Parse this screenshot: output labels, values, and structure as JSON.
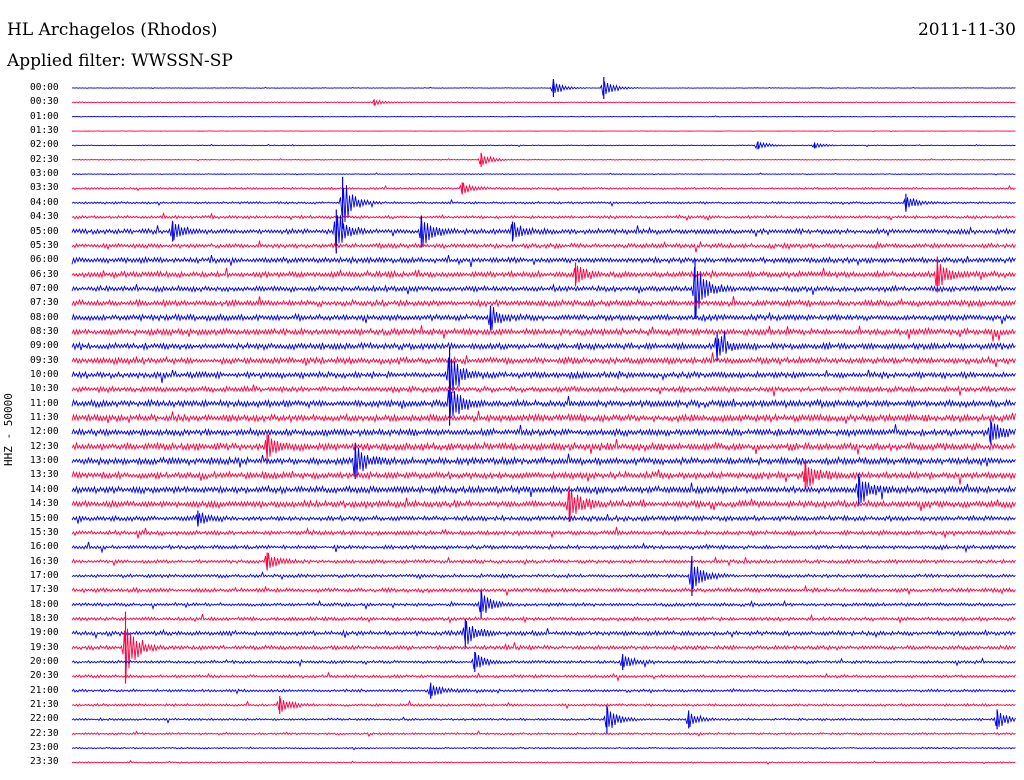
{
  "header": {
    "station": "HL Archagelos (Rhodos)",
    "date": "2011-11-30",
    "filter_label": "Applied filter: WWSSN-SP",
    "channel_label": "HHZ - 50000"
  },
  "colors": {
    "even_trace": "#0000e6",
    "odd_trace": "#ff0040"
  },
  "chart_data": {
    "type": "line",
    "title": "HL Archagelos (Rhodos)",
    "date": "2011-11-30",
    "filter": "WWSSN-SP",
    "ylabel": "HHZ - 50000",
    "row_interval_minutes": 30,
    "row_labels": [
      "00:00",
      "00:30",
      "01:00",
      "01:30",
      "02:00",
      "02:30",
      "03:00",
      "03:30",
      "04:00",
      "04:30",
      "05:00",
      "05:30",
      "06:00",
      "06:30",
      "07:00",
      "07:30",
      "08:00",
      "08:30",
      "09:00",
      "09:30",
      "10:00",
      "10:30",
      "11:00",
      "11:30",
      "12:00",
      "12:30",
      "13:00",
      "13:30",
      "14:00",
      "14:30",
      "15:00",
      "15:30",
      "16:00",
      "16:30",
      "17:00",
      "17:30",
      "18:00",
      "18:30",
      "19:00",
      "19:30",
      "20:00",
      "20:30",
      "21:00",
      "21:30",
      "22:00",
      "22:30",
      "23:00",
      "23:30"
    ],
    "noise_level": [
      0.3,
      0.4,
      0.3,
      0.2,
      0.4,
      0.4,
      0.4,
      0.9,
      1.0,
      1.3,
      2.2,
      2.0,
      2.4,
      2.6,
      2.4,
      2.6,
      2.6,
      2.8,
      2.8,
      2.8,
      2.6,
      2.4,
      3.0,
      3.0,
      3.0,
      3.2,
      3.0,
      2.9,
      3.0,
      3.0,
      2.2,
      2.0,
      1.7,
      1.6,
      1.5,
      1.8,
      1.5,
      1.6,
      2.0,
      1.8,
      1.3,
      1.3,
      1.2,
      1.1,
      1.0,
      0.9,
      0.7,
      0.6
    ],
    "events": [
      {
        "row": "00:00",
        "minute": 15.3,
        "amplitude": 9
      },
      {
        "row": "00:00",
        "minute": 16.9,
        "amplitude": 11
      },
      {
        "row": "00:30",
        "minute": 9.6,
        "amplitude": 3
      },
      {
        "row": "02:00",
        "minute": 21.8,
        "amplitude": 4
      },
      {
        "row": "02:00",
        "minute": 23.6,
        "amplitude": 3
      },
      {
        "row": "02:30",
        "minute": 13.0,
        "amplitude": 7
      },
      {
        "row": "03:30",
        "minute": 12.4,
        "amplitude": 6
      },
      {
        "row": "04:00",
        "minute": 8.6,
        "amplitude": 26
      },
      {
        "row": "04:00",
        "minute": 26.5,
        "amplitude": 9
      },
      {
        "row": "05:00",
        "minute": 3.2,
        "amplitude": 10
      },
      {
        "row": "05:00",
        "minute": 8.4,
        "amplitude": 22
      },
      {
        "row": "05:00",
        "minute": 11.1,
        "amplitude": 16
      },
      {
        "row": "05:00",
        "minute": 14.0,
        "amplitude": 10
      },
      {
        "row": "06:30",
        "minute": 16.0,
        "amplitude": 12
      },
      {
        "row": "06:30",
        "minute": 27.5,
        "amplitude": 18
      },
      {
        "row": "07:00",
        "minute": 19.8,
        "amplitude": 30
      },
      {
        "row": "08:00",
        "minute": 13.3,
        "amplitude": 12
      },
      {
        "row": "09:00",
        "minute": 20.5,
        "amplitude": 14
      },
      {
        "row": "10:00",
        "minute": 12.0,
        "amplitude": 28
      },
      {
        "row": "11:00",
        "minute": 12.0,
        "amplitude": 22
      },
      {
        "row": "12:00",
        "minute": 29.2,
        "amplitude": 12
      },
      {
        "row": "12:30",
        "minute": 6.2,
        "amplitude": 14
      },
      {
        "row": "13:00",
        "minute": 9.0,
        "amplitude": 18
      },
      {
        "row": "13:30",
        "minute": 23.3,
        "amplitude": 14
      },
      {
        "row": "14:00",
        "minute": 25.0,
        "amplitude": 16
      },
      {
        "row": "14:30",
        "minute": 15.8,
        "amplitude": 18
      },
      {
        "row": "15:00",
        "minute": 4.0,
        "amplitude": 8
      },
      {
        "row": "16:30",
        "minute": 6.2,
        "amplitude": 9
      },
      {
        "row": "17:00",
        "minute": 19.7,
        "amplitude": 20
      },
      {
        "row": "18:00",
        "minute": 13.0,
        "amplitude": 14
      },
      {
        "row": "19:00",
        "minute": 12.5,
        "amplitude": 14
      },
      {
        "row": "19:30",
        "minute": 1.7,
        "amplitude": 36
      },
      {
        "row": "20:00",
        "minute": 12.8,
        "amplitude": 10
      },
      {
        "row": "20:00",
        "minute": 17.5,
        "amplitude": 8
      },
      {
        "row": "21:00",
        "minute": 11.4,
        "amplitude": 8
      },
      {
        "row": "21:30",
        "minute": 6.6,
        "amplitude": 9
      },
      {
        "row": "22:00",
        "minute": 17.0,
        "amplitude": 14
      },
      {
        "row": "22:00",
        "minute": 19.6,
        "amplitude": 9
      },
      {
        "row": "22:00",
        "minute": 29.4,
        "amplitude": 10
      }
    ]
  }
}
